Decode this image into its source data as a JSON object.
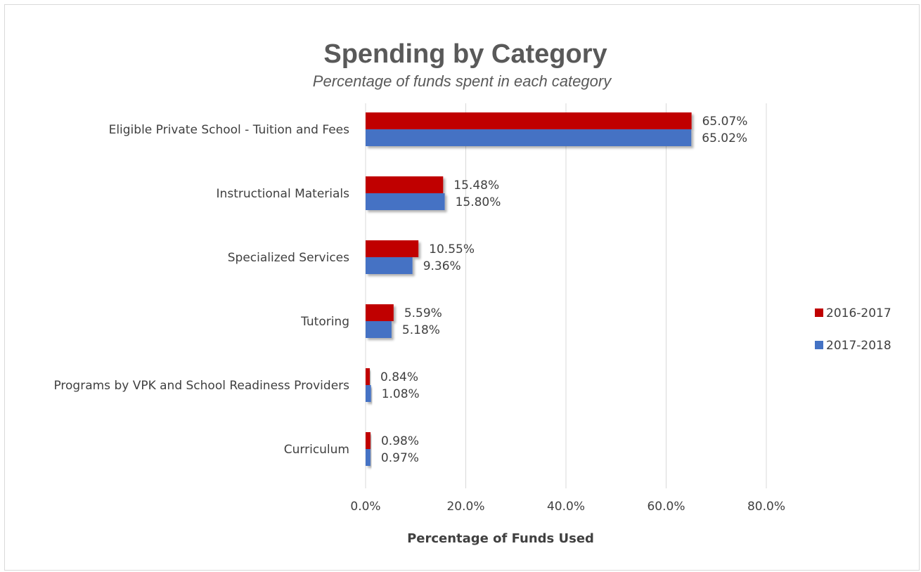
{
  "chart_data": {
    "type": "bar",
    "orientation": "horizontal",
    "title": "Spending by Category",
    "subtitle": "Percentage of funds spent in each category",
    "xlabel": "Percentage of Funds Used",
    "ylabel": "",
    "xlim": [
      0,
      80
    ],
    "xticks": [
      "0.0%",
      "20.0%",
      "40.0%",
      "60.0%",
      "80.0%"
    ],
    "grid": true,
    "legend_position": "right",
    "categories": [
      "Eligible Private School - Tuition and Fees",
      "Instructional Materials",
      "Specialized Services",
      "Tutoring",
      "Programs by VPK and School Readiness Providers",
      "Curriculum"
    ],
    "series": [
      {
        "name": "2016-2017",
        "color": "#c00000",
        "values": [
          65.07,
          15.48,
          10.55,
          5.59,
          0.84,
          0.98
        ],
        "labels": [
          "65.07%",
          "15.48%",
          "10.55%",
          "5.59%",
          "0.84%",
          "0.98%"
        ]
      },
      {
        "name": "2017-2018",
        "color": "#4472c4",
        "values": [
          65.02,
          15.8,
          9.36,
          5.18,
          1.08,
          0.97
        ],
        "labels": [
          "65.02%",
          "15.80%",
          "9.36%",
          "5.18%",
          "1.08%",
          "0.97%"
        ]
      }
    ]
  }
}
